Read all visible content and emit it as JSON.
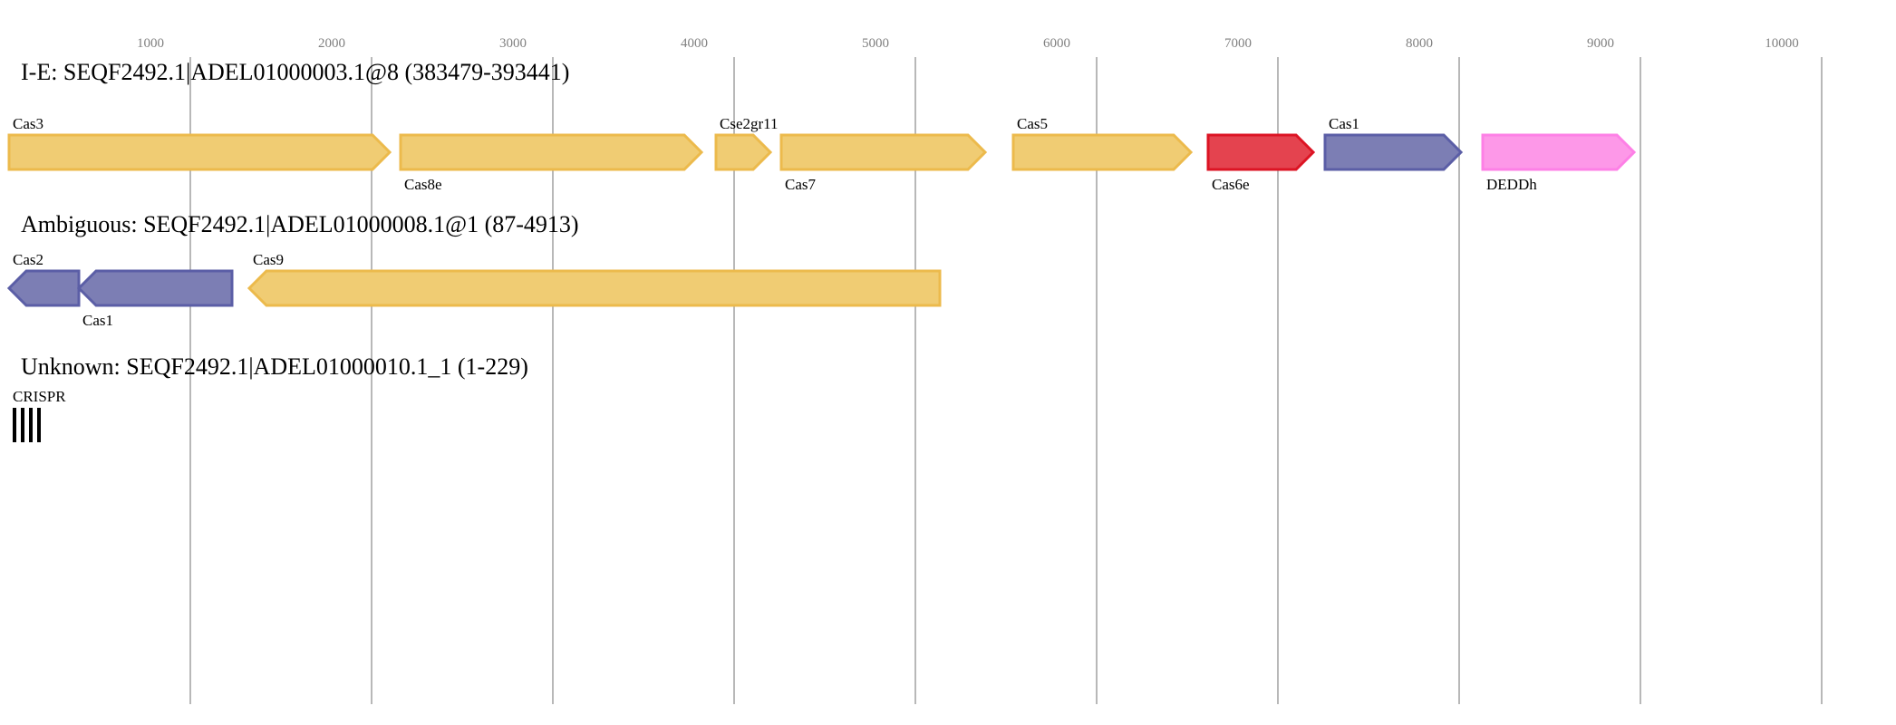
{
  "axis": {
    "ticks": [
      1000,
      2000,
      3000,
      4000,
      5000,
      6000,
      7000,
      8000,
      9000,
      10000
    ],
    "unit": "bp"
  },
  "colors": {
    "yellow_fill": "#f0cc73",
    "yellow_stroke": "#ecba4c",
    "red_fill": "#e4434f",
    "red_stroke": "#dc1424",
    "blue_fill": "#7c7eb4",
    "blue_stroke": "#5b5ea6",
    "pink_fill": "#fd98e8",
    "pink_stroke": "#fd80e6"
  },
  "loci": [
    {
      "title": "I-E: SEQF2492.1|ADEL01000003.1@8 (383479-393441)",
      "genes": [
        {
          "name": "Cas3",
          "start": 0,
          "end": 2100,
          "strand": "+",
          "color": "yellow",
          "label_pos": "top"
        },
        {
          "name": "Cas8e",
          "start": 2160,
          "end": 3820,
          "strand": "+",
          "color": "yellow",
          "label_pos": "bottom"
        },
        {
          "name": "Cse2gr11",
          "start": 3900,
          "end": 4200,
          "strand": "+",
          "color": "yellow",
          "label_pos": "top"
        },
        {
          "name": "Cas7",
          "start": 4260,
          "end": 5385,
          "strand": "+",
          "color": "yellow",
          "label_pos": "bottom"
        },
        {
          "name": "Cas5",
          "start": 5540,
          "end": 6520,
          "strand": "+",
          "color": "yellow",
          "label_pos": "top"
        },
        {
          "name": "Cas6e",
          "start": 6615,
          "end": 7195,
          "strand": "+",
          "color": "red",
          "label_pos": "bottom"
        },
        {
          "name": "Cas1",
          "start": 7260,
          "end": 8010,
          "strand": "+",
          "color": "blue",
          "label_pos": "top"
        },
        {
          "name": "DEDDh",
          "start": 8130,
          "end": 8965,
          "strand": "+",
          "color": "pink",
          "label_pos": "bottom"
        }
      ]
    },
    {
      "title": "Ambiguous: SEQF2492.1|ADEL01000008.1@1 (87-4913)",
      "genes": [
        {
          "name": "Cas2",
          "start": 0,
          "end": 385,
          "strand": "-",
          "color": "blue",
          "label_pos": "top"
        },
        {
          "name": "Cas1",
          "start": 385,
          "end": 1230,
          "strand": "-",
          "color": "blue",
          "label_pos": "bottom"
        },
        {
          "name": "Cas9",
          "start": 1325,
          "end": 5135,
          "strand": "-",
          "color": "yellow",
          "label_pos": "top"
        }
      ]
    },
    {
      "title": "Unknown: SEQF2492.1|ADEL01000010.1_1 (1-229)",
      "crispr": {
        "name": "CRISPR",
        "repeats": 4
      }
    }
  ]
}
